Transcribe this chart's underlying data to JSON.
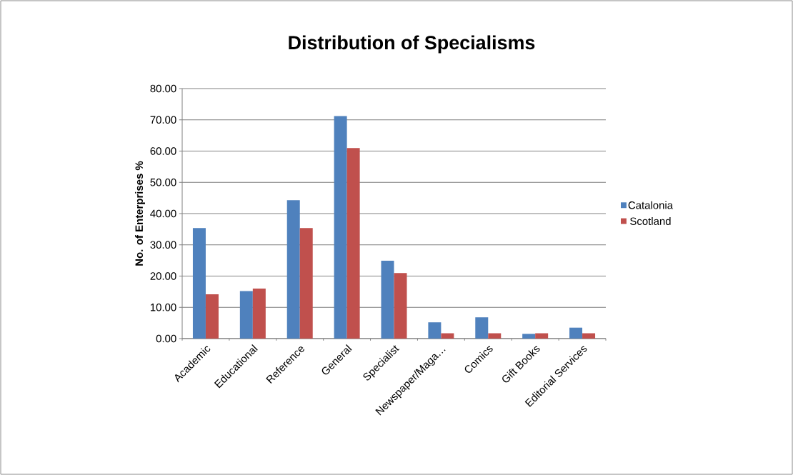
{
  "chart_data": {
    "type": "bar",
    "title": "Distribution of Specialisms",
    "ylabel": "No. of Enterprises %",
    "categories": [
      "Academic",
      "Educational",
      "Reference",
      "General",
      "Specialist",
      "Newspaper/Maga…",
      "Comics",
      "Gift Books",
      "Editorial Services"
    ],
    "series": [
      {
        "name": "Catalonia",
        "color": "#4f81bd",
        "values": [
          35.4,
          15.2,
          44.3,
          71.2,
          24.9,
          5.2,
          6.8,
          1.5,
          3.5
        ]
      },
      {
        "name": "Scotland",
        "color": "#c0504d",
        "values": [
          14.2,
          16.0,
          35.4,
          61.0,
          21.0,
          1.7,
          1.7,
          1.7,
          1.7
        ]
      }
    ],
    "ylim": [
      0,
      80
    ],
    "yticks": [
      {
        "value": 0,
        "label": "0.00"
      },
      {
        "value": 10,
        "label": "10.00"
      },
      {
        "value": 20,
        "label": "20.00"
      },
      {
        "value": 30,
        "label": "30.00"
      },
      {
        "value": 40,
        "label": "40.00"
      },
      {
        "value": 50,
        "label": "50.00"
      },
      {
        "value": 60,
        "label": "60.00"
      },
      {
        "value": 70,
        "label": "70.00"
      },
      {
        "value": 80,
        "label": "80.00"
      }
    ],
    "grid": "y",
    "legend": "right"
  }
}
